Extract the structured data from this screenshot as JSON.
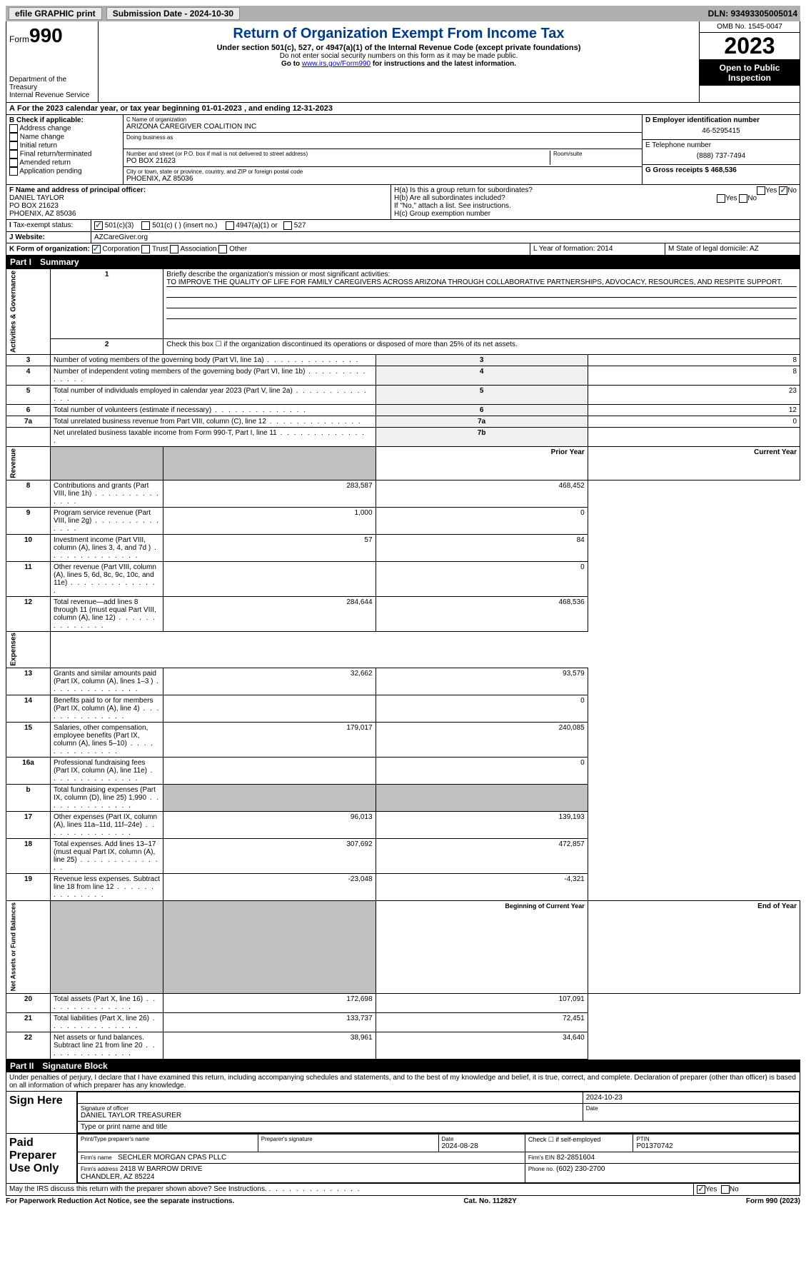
{
  "topbar": {
    "efile": "efile GRAPHIC print",
    "sub_label": "Submission Date - 2024-10-30",
    "dln": "DLN: 93493305005014"
  },
  "header": {
    "form_label": "Form",
    "form_num": "990",
    "dept": "Department of the Treasury\nInternal Revenue Service",
    "title": "Return of Organization Exempt From Income Tax",
    "sub": "Under section 501(c), 527, or 4947(a)(1) of the Internal Revenue Code (except private foundations)",
    "ssn": "Do not enter social security numbers on this form as it may be made public.",
    "goto": "Go to ",
    "goto_link": "www.irs.gov/Form990",
    "goto_rest": " for instructions and the latest information.",
    "omb": "OMB No. 1545-0047",
    "year": "2023",
    "open": "Open to Public Inspection"
  },
  "period": {
    "text": "For the 2023 calendar year, or tax year beginning 01-01-2023     , and ending 12-31-2023"
  },
  "box_b": {
    "label": "B Check if applicable:",
    "items": [
      "Address change",
      "Name change",
      "Initial return",
      "Final return/terminated",
      "Amended return",
      "Application pending"
    ]
  },
  "box_c": {
    "name_lbl": "C Name of organization",
    "name": "ARIZONA CAREGIVER COALITION INC",
    "dba_lbl": "Doing business as",
    "street_lbl": "Number and street (or P.O. box if mail is not delivered to street address)",
    "room_lbl": "Room/suite",
    "street": "PO BOX 21623",
    "city_lbl": "City or town, state or province, country, and ZIP or foreign postal code",
    "city": "PHOENIX, AZ  85036"
  },
  "box_d": {
    "lbl": "D Employer identification number",
    "val": "46-5295415"
  },
  "box_e": {
    "lbl": "E Telephone number",
    "val": "(888) 737-7494"
  },
  "box_g": {
    "lbl": "G Gross receipts $ 468,536"
  },
  "box_f": {
    "lbl": "F  Name and address of principal officer:",
    "val": "DANIEL TAYLOR\nPO BOX 21623\nPHOENIX, AZ  85036"
  },
  "box_h": {
    "a": "H(a)  Is this a group return for subordinates?",
    "b": "H(b)  Are all subordinates included?",
    "b_note": "If \"No,\" attach a list. See instructions.",
    "c": "H(c)  Group exemption number"
  },
  "box_i": {
    "lbl": "Tax-exempt status:",
    "opts": [
      "501(c)(3)",
      "501(c) (  ) (insert no.)",
      "4947(a)(1) or",
      "527"
    ]
  },
  "box_j": {
    "lbl": "Website:",
    "val": "AZCareGiver.org"
  },
  "box_k": {
    "lbl": "K Form of organization:",
    "opts": [
      "Corporation",
      "Trust",
      "Association",
      "Other"
    ]
  },
  "box_l": {
    "lbl": "L Year of formation: 2014"
  },
  "box_m": {
    "lbl": "M State of legal domicile: AZ"
  },
  "part1": {
    "title": "Part I",
    "name": "Summary",
    "q1_lbl": "Briefly describe the organization's mission or most significant activities:",
    "q1": "TO IMPROVE THE QUALITY OF LIFE FOR FAMILY CAREGIVERS ACROSS ARIZONA THROUGH COLLABORATIVE PARTNERSHIPS, ADVOCACY, RESOURCES, AND RESPITE SUPPORT.",
    "q2": "Check this box ☐ if the organization discontinued its operations or disposed of more than 25% of its net assets.",
    "rows_gov": [
      {
        "n": "3",
        "t": "Number of voting members of the governing body (Part VI, line 1a)",
        "b": "3",
        "v": "8"
      },
      {
        "n": "4",
        "t": "Number of independent voting members of the governing body (Part VI, line 1b)",
        "b": "4",
        "v": "8"
      },
      {
        "n": "5",
        "t": "Total number of individuals employed in calendar year 2023 (Part V, line 2a)",
        "b": "5",
        "v": "23"
      },
      {
        "n": "6",
        "t": "Total number of volunteers (estimate if necessary)",
        "b": "6",
        "v": "12"
      },
      {
        "n": "7a",
        "t": "Total unrelated business revenue from Part VIII, column (C), line 12",
        "b": "7a",
        "v": "0"
      },
      {
        "n": "",
        "t": "Net unrelated business taxable income from Form 990-T, Part I, line 11",
        "b": "7b",
        "v": ""
      }
    ],
    "hdr_prior": "Prior Year",
    "hdr_current": "Current Year",
    "rows_rev": [
      {
        "n": "8",
        "t": "Contributions and grants (Part VIII, line 1h)",
        "p": "283,587",
        "c": "468,452"
      },
      {
        "n": "9",
        "t": "Program service revenue (Part VIII, line 2g)",
        "p": "1,000",
        "c": "0"
      },
      {
        "n": "10",
        "t": "Investment income (Part VIII, column (A), lines 3, 4, and 7d )",
        "p": "57",
        "c": "84"
      },
      {
        "n": "11",
        "t": "Other revenue (Part VIII, column (A), lines 5, 6d, 8c, 9c, 10c, and 11e)",
        "p": "",
        "c": "0"
      },
      {
        "n": "12",
        "t": "Total revenue—add lines 8 through 11 (must equal Part VIII, column (A), line 12)",
        "p": "284,644",
        "c": "468,536"
      }
    ],
    "rows_exp": [
      {
        "n": "13",
        "t": "Grants and similar amounts paid (Part IX, column (A), lines 1–3 )",
        "p": "32,662",
        "c": "93,579"
      },
      {
        "n": "14",
        "t": "Benefits paid to or for members (Part IX, column (A), line 4)",
        "p": "",
        "c": "0"
      },
      {
        "n": "15",
        "t": "Salaries, other compensation, employee benefits (Part IX, column (A), lines 5–10)",
        "p": "179,017",
        "c": "240,085"
      },
      {
        "n": "16a",
        "t": "Professional fundraising fees (Part IX, column (A), line 11e)",
        "p": "",
        "c": "0"
      },
      {
        "n": "b",
        "t": "Total fundraising expenses (Part IX, column (D), line 25) 1,990",
        "p": "SHADE",
        "c": "SHADE"
      },
      {
        "n": "17",
        "t": "Other expenses (Part IX, column (A), lines 11a–11d, 11f–24e)",
        "p": "96,013",
        "c": "139,193"
      },
      {
        "n": "18",
        "t": "Total expenses. Add lines 13–17 (must equal Part IX, column (A), line 25)",
        "p": "307,692",
        "c": "472,857"
      },
      {
        "n": "19",
        "t": "Revenue less expenses. Subtract line 18 from line 12",
        "p": "-23,048",
        "c": "-4,321"
      }
    ],
    "hdr_begin": "Beginning of Current Year",
    "hdr_end": "End of Year",
    "rows_net": [
      {
        "n": "20",
        "t": "Total assets (Part X, line 16)",
        "p": "172,698",
        "c": "107,091"
      },
      {
        "n": "21",
        "t": "Total liabilities (Part X, line 26)",
        "p": "133,737",
        "c": "72,451"
      },
      {
        "n": "22",
        "t": "Net assets or fund balances. Subtract line 21 from line 20",
        "p": "38,961",
        "c": "34,640"
      }
    ],
    "side_gov": "Activities & Governance",
    "side_rev": "Revenue",
    "side_exp": "Expenses",
    "side_net": "Net Assets or Fund Balances"
  },
  "part2": {
    "title": "Part II",
    "name": "Signature Block",
    "decl": "Under penalties of perjury, I declare that I have examined this return, including accompanying schedules and statements, and to the best of my knowledge and belief, it is true, correct, and complete. Declaration of preparer (other than officer) is based on all information of which preparer has any knowledge.",
    "sign_here": "Sign Here",
    "sig_officer_lbl": "Signature of officer",
    "sig_officer": "DANIEL TAYLOR  TREASURER",
    "sig_date": "2024-10-23",
    "type_lbl": "Type or print name and title",
    "date_lbl": "Date",
    "paid": "Paid Preparer Use Only",
    "prep_name_lbl": "Print/Type preparer's name",
    "prep_sig_lbl": "Preparer's signature",
    "prep_date": "2024-08-28",
    "prep_check": "Check ☐ if self-employed",
    "ptin_lbl": "PTIN",
    "ptin": "P01370742",
    "firm_name_lbl": "Firm's name",
    "firm_name": "SECHLER MORGAN CPAS PLLC",
    "firm_ein_lbl": "Firm's EIN",
    "firm_ein": "82-2851604",
    "firm_addr_lbl": "Firm's address",
    "firm_addr": "2418 W BARROW DRIVE\nCHANDLER, AZ  85224",
    "phone_lbl": "Phone no.",
    "phone": "(602) 230-2700",
    "discuss": "May the IRS discuss this return with the preparer shown above? See Instructions.",
    "yes": "Yes",
    "no": "No"
  },
  "footer": {
    "l": "For Paperwork Reduction Act Notice, see the separate instructions.",
    "m": "Cat. No. 11282Y",
    "r": "Form 990 (2023)"
  }
}
